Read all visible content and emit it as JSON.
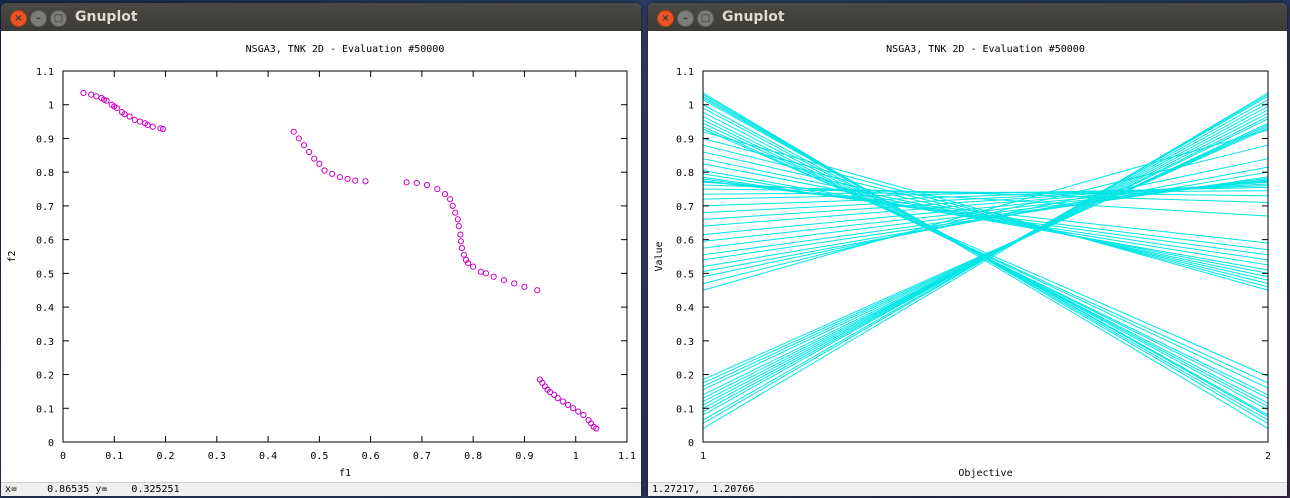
{
  "windows": [
    {
      "title": "Gnuplot",
      "status": "x=     0.86535 y=    0.325251",
      "chart_data": {
        "type": "scatter",
        "title": "NSGA3, TNK 2D - Evaluation #50000",
        "xlabel": "f1",
        "ylabel": "f2",
        "xlim": [
          0,
          1.1
        ],
        "ylim": [
          0,
          1.1
        ],
        "xticks": [
          "0",
          "0.1",
          "0.2",
          "0.3",
          "0.4",
          "0.5",
          "0.6",
          "0.7",
          "0.8",
          "0.9",
          "1",
          "1.1"
        ],
        "yticks": [
          "0",
          "0.1",
          "0.2",
          "0.3",
          "0.4",
          "0.5",
          "0.6",
          "0.7",
          "0.8",
          "0.9",
          "1",
          "1.1"
        ],
        "color": "#cc00cc",
        "points": [
          [
            0.04,
            1.035
          ],
          [
            0.055,
            1.03
          ],
          [
            0.065,
            1.025
          ],
          [
            0.075,
            1.02
          ],
          [
            0.08,
            1.015
          ],
          [
            0.085,
            1.012
          ],
          [
            0.095,
            1.0
          ],
          [
            0.1,
            0.995
          ],
          [
            0.105,
            0.99
          ],
          [
            0.115,
            0.978
          ],
          [
            0.12,
            0.972
          ],
          [
            0.13,
            0.965
          ],
          [
            0.14,
            0.955
          ],
          [
            0.15,
            0.95
          ],
          [
            0.16,
            0.945
          ],
          [
            0.165,
            0.94
          ],
          [
            0.175,
            0.935
          ],
          [
            0.19,
            0.93
          ],
          [
            0.195,
            0.928
          ],
          [
            0.45,
            0.92
          ],
          [
            0.46,
            0.9
          ],
          [
            0.47,
            0.88
          ],
          [
            0.48,
            0.86
          ],
          [
            0.49,
            0.84
          ],
          [
            0.5,
            0.825
          ],
          [
            0.51,
            0.805
          ],
          [
            0.525,
            0.795
          ],
          [
            0.54,
            0.785
          ],
          [
            0.555,
            0.78
          ],
          [
            0.57,
            0.775
          ],
          [
            0.59,
            0.773
          ],
          [
            0.67,
            0.77
          ],
          [
            0.69,
            0.768
          ],
          [
            0.71,
            0.762
          ],
          [
            0.73,
            0.75
          ],
          [
            0.745,
            0.735
          ],
          [
            0.755,
            0.72
          ],
          [
            0.76,
            0.7
          ],
          [
            0.765,
            0.68
          ],
          [
            0.77,
            0.66
          ],
          [
            0.772,
            0.64
          ],
          [
            0.775,
            0.615
          ],
          [
            0.776,
            0.595
          ],
          [
            0.778,
            0.575
          ],
          [
            0.782,
            0.555
          ],
          [
            0.786,
            0.54
          ],
          [
            0.79,
            0.53
          ],
          [
            0.8,
            0.52
          ],
          [
            0.815,
            0.505
          ],
          [
            0.825,
            0.5
          ],
          [
            0.84,
            0.49
          ],
          [
            0.86,
            0.48
          ],
          [
            0.88,
            0.47
          ],
          [
            0.9,
            0.46
          ],
          [
            0.925,
            0.45
          ],
          [
            0.93,
            0.185
          ],
          [
            0.935,
            0.175
          ],
          [
            0.94,
            0.165
          ],
          [
            0.945,
            0.155
          ],
          [
            0.95,
            0.148
          ],
          [
            0.958,
            0.14
          ],
          [
            0.965,
            0.13
          ],
          [
            0.975,
            0.12
          ],
          [
            0.985,
            0.11
          ],
          [
            0.995,
            0.1
          ],
          [
            1.005,
            0.09
          ],
          [
            1.015,
            0.08
          ],
          [
            1.025,
            0.065
          ],
          [
            1.03,
            0.055
          ],
          [
            1.035,
            0.045
          ],
          [
            1.04,
            0.04
          ]
        ]
      }
    },
    {
      "title": "Gnuplot",
      "status": "1.27217,  1.20766",
      "chart_data": {
        "type": "line",
        "title": "NSGA3, TNK 2D - Evaluation #50000",
        "xlabel": "Objective",
        "ylabel": "Value",
        "xlim": [
          1,
          2
        ],
        "ylim": [
          0,
          1.1
        ],
        "xticks": [
          "1",
          "2"
        ],
        "yticks": [
          "0",
          "0.1",
          "0.2",
          "0.3",
          "0.4",
          "0.5",
          "0.6",
          "0.7",
          "0.8",
          "0.9",
          "1",
          "1.1"
        ],
        "color": "#00e5e5",
        "lines": [
          [
            1.035,
            0.04
          ],
          [
            1.03,
            0.055
          ],
          [
            1.025,
            0.065
          ],
          [
            1.02,
            0.075
          ],
          [
            1.015,
            0.08
          ],
          [
            1.0,
            0.095
          ],
          [
            0.99,
            0.105
          ],
          [
            0.978,
            0.115
          ],
          [
            0.965,
            0.13
          ],
          [
            0.955,
            0.14
          ],
          [
            0.945,
            0.16
          ],
          [
            0.935,
            0.175
          ],
          [
            0.928,
            0.195
          ],
          [
            0.92,
            0.45
          ],
          [
            0.9,
            0.46
          ],
          [
            0.88,
            0.47
          ],
          [
            0.86,
            0.48
          ],
          [
            0.84,
            0.49
          ],
          [
            0.825,
            0.5
          ],
          [
            0.805,
            0.51
          ],
          [
            0.795,
            0.525
          ],
          [
            0.785,
            0.54
          ],
          [
            0.78,
            0.555
          ],
          [
            0.775,
            0.57
          ],
          [
            0.773,
            0.59
          ],
          [
            0.77,
            0.67
          ],
          [
            0.762,
            0.71
          ],
          [
            0.75,
            0.73
          ],
          [
            0.735,
            0.745
          ],
          [
            0.72,
            0.755
          ],
          [
            0.7,
            0.76
          ],
          [
            0.68,
            0.765
          ],
          [
            0.66,
            0.77
          ],
          [
            0.64,
            0.772
          ],
          [
            0.615,
            0.775
          ],
          [
            0.595,
            0.776
          ],
          [
            0.575,
            0.778
          ],
          [
            0.555,
            0.782
          ],
          [
            0.54,
            0.786
          ],
          [
            0.52,
            0.8
          ],
          [
            0.505,
            0.815
          ],
          [
            0.49,
            0.84
          ],
          [
            0.47,
            0.88
          ],
          [
            0.45,
            0.925
          ],
          [
            0.185,
            0.93
          ],
          [
            0.175,
            0.935
          ],
          [
            0.165,
            0.94
          ],
          [
            0.155,
            0.945
          ],
          [
            0.14,
            0.958
          ],
          [
            0.13,
            0.965
          ],
          [
            0.12,
            0.975
          ],
          [
            0.11,
            0.985
          ],
          [
            0.1,
            0.995
          ],
          [
            0.09,
            1.005
          ],
          [
            0.08,
            1.015
          ],
          [
            0.065,
            1.025
          ],
          [
            0.055,
            1.03
          ],
          [
            0.04,
            1.035
          ]
        ]
      }
    }
  ]
}
